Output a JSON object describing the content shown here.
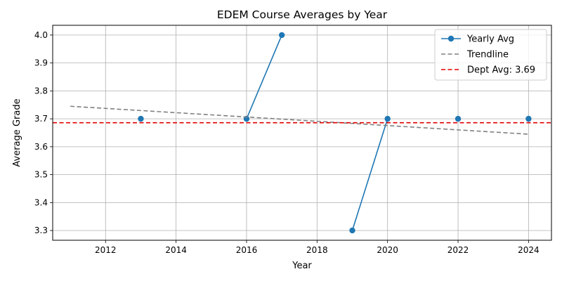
{
  "chart_data": {
    "type": "line",
    "title": "EDEM Course Averages by Year",
    "xlabel": "Year",
    "ylabel": "Average Grade",
    "xlim": [
      2010.5,
      2024.65
    ],
    "ylim": [
      3.265,
      4.035
    ],
    "xticks": [
      2012,
      2014,
      2016,
      2018,
      2020,
      2022,
      2024
    ],
    "yticks": [
      3.3,
      3.4,
      3.5,
      3.6,
      3.7,
      3.8,
      3.9,
      4.0
    ],
    "grid": true,
    "legend_position": "top-right",
    "series": [
      {
        "name": "Yearly Avg",
        "style": "solid-marker",
        "color": "#1f77b4",
        "segments": [
          [
            {
              "x": 2013,
              "y": 3.7
            }
          ],
          [
            {
              "x": 2016,
              "y": 3.7
            },
            {
              "x": 2017,
              "y": 4.0
            }
          ],
          [
            {
              "x": 2019,
              "y": 3.3
            },
            {
              "x": 2020,
              "y": 3.7
            }
          ],
          [
            {
              "x": 2022,
              "y": 3.7
            }
          ],
          [
            {
              "x": 2024,
              "y": 3.7
            }
          ]
        ]
      },
      {
        "name": "Trendline",
        "style": "dashed",
        "color": "#808080",
        "points": [
          {
            "x": 2011,
            "y": 3.745
          },
          {
            "x": 2024,
            "y": 3.645
          }
        ]
      },
      {
        "name": "Dept Avg: 3.69",
        "style": "dashed-full",
        "color": "#e00000",
        "value": 3.686
      }
    ]
  }
}
